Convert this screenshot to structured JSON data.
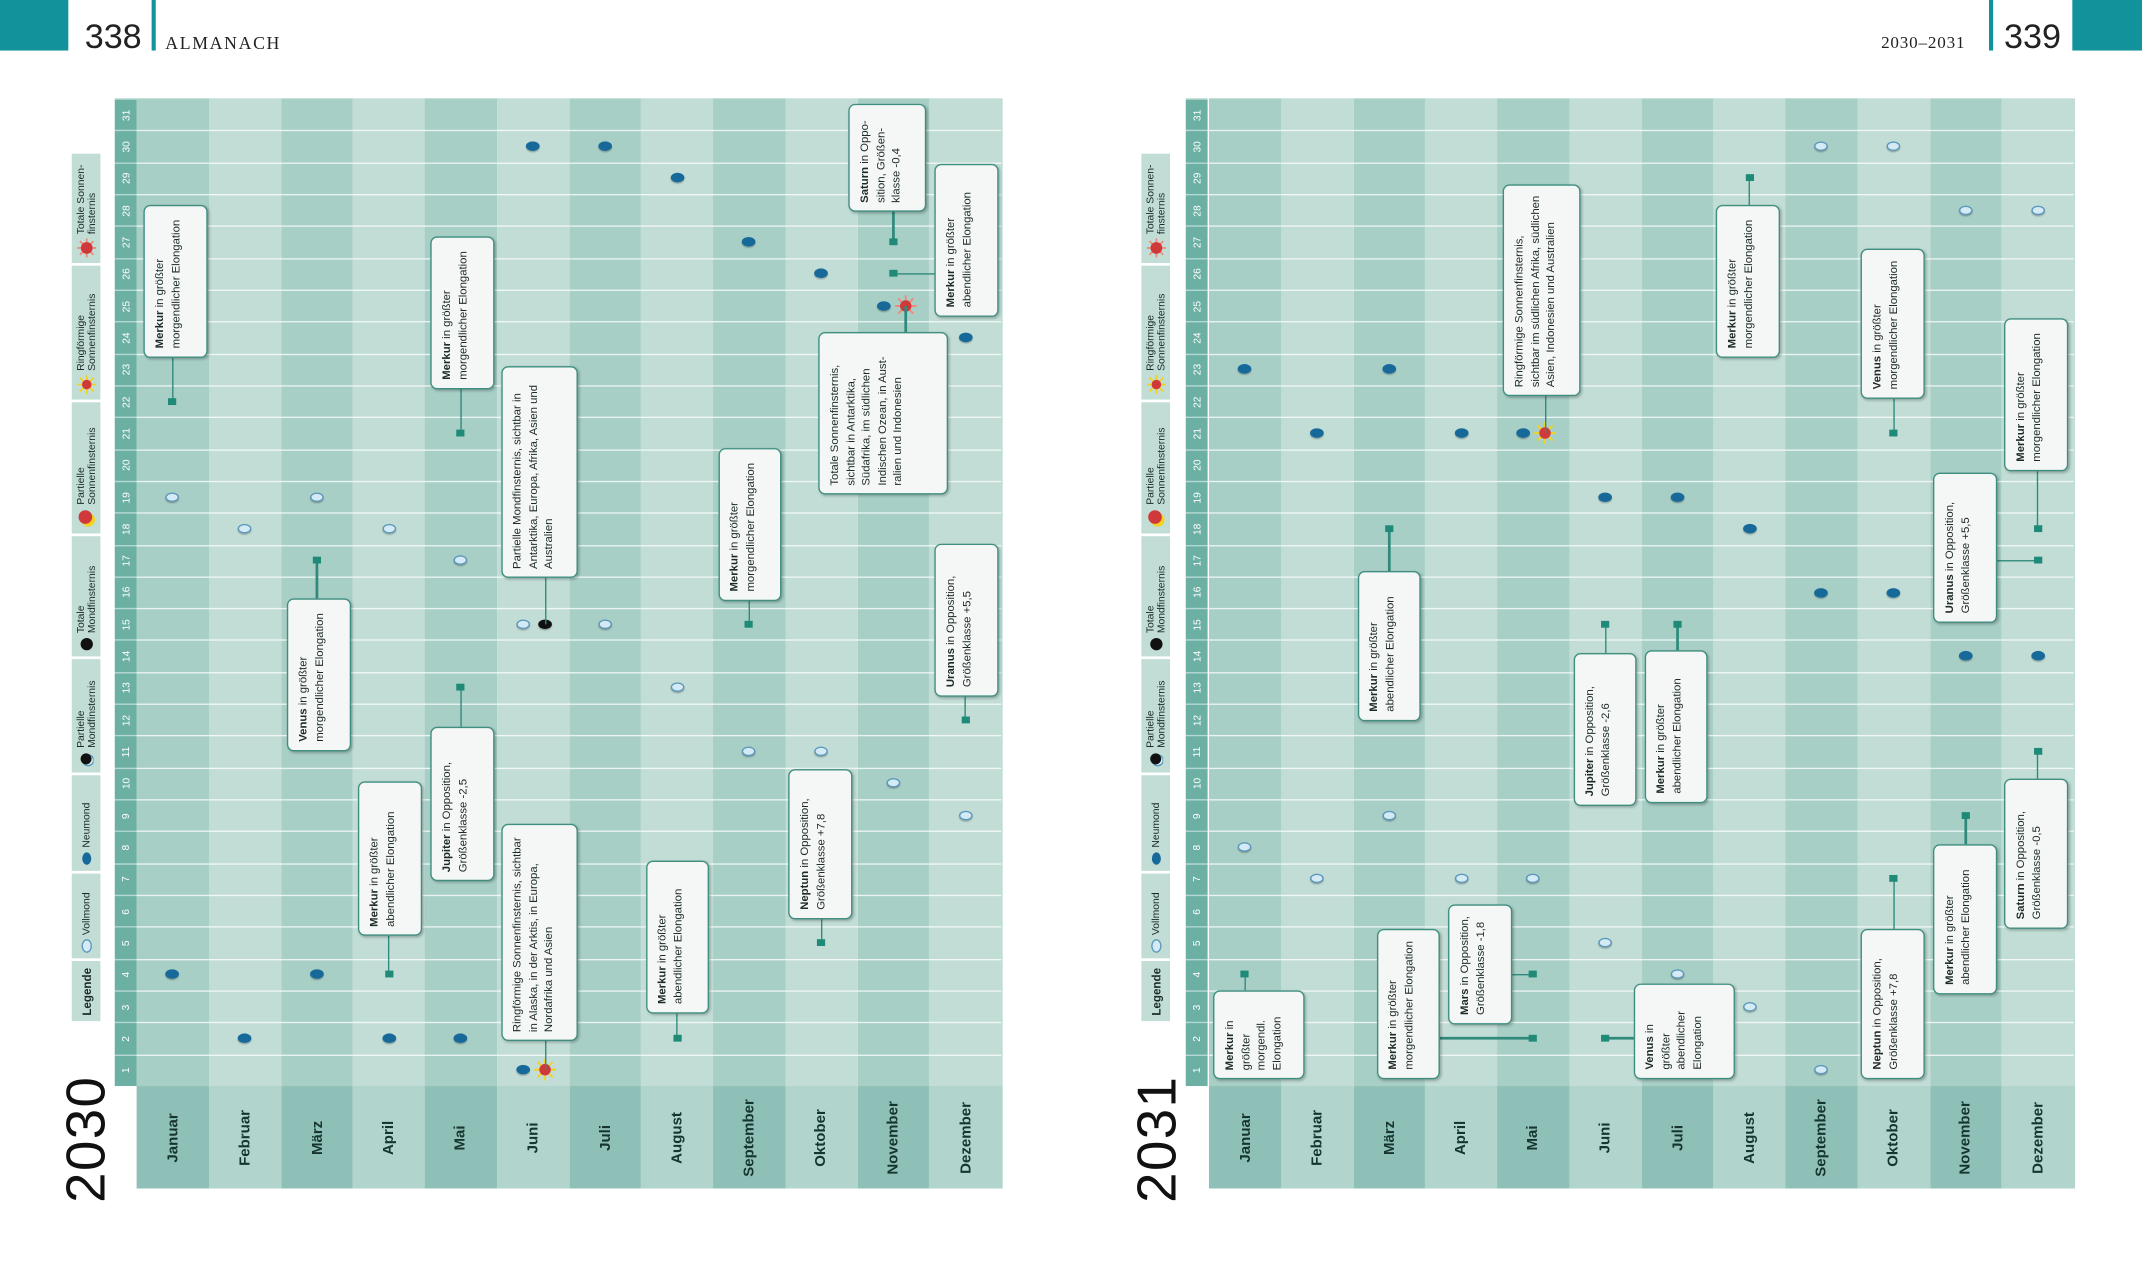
{
  "header": {
    "left": {
      "page": "338",
      "section": "ALMANACH"
    },
    "right": {
      "range": "2030–2031",
      "page": "339"
    }
  },
  "legend": {
    "title": "Legende",
    "items": [
      {
        "label": "Vollmond",
        "icon": "full-moon"
      },
      {
        "label": "Neumond",
        "icon": "new-moon"
      },
      {
        "label": "Partielle Mondfinsternis",
        "icon": "partial-lunar-eclipse"
      },
      {
        "label": "Totale Mondfinsternis",
        "icon": "total-lunar-eclipse"
      },
      {
        "label": "Partielle Sonnenfinsternis",
        "icon": "partial-solar-eclipse"
      },
      {
        "label": "Ringförmige Sonnenfinsternis",
        "icon": "annular-solar-eclipse"
      },
      {
        "label": "Totale Sonnen-finsternis",
        "icon": "total-solar-eclipse"
      }
    ]
  },
  "months": [
    "Januar",
    "Februar",
    "März",
    "April",
    "Mai",
    "Juni",
    "Juli",
    "August",
    "September",
    "Oktober",
    "November",
    "Dezember"
  ],
  "colors": {
    "accent": "#12929a",
    "column_dark": "#a8cfc6",
    "column_light": "#c1ddd6",
    "new_moon": "#17699a",
    "full_moon": "#d4ebf6",
    "callout_border": "#3f8f81"
  },
  "years": [
    {
      "year": "2030",
      "events": [
        {
          "month": 1,
          "day": 4,
          "type": "new-moon"
        },
        {
          "month": 1,
          "day": 19,
          "type": "full-moon"
        },
        {
          "month": 2,
          "day": 2,
          "type": "new-moon"
        },
        {
          "month": 2,
          "day": 18,
          "type": "full-moon"
        },
        {
          "month": 3,
          "day": 4,
          "type": "new-moon"
        },
        {
          "month": 3,
          "day": 19,
          "type": "full-moon"
        },
        {
          "month": 4,
          "day": 2,
          "type": "new-moon"
        },
        {
          "month": 4,
          "day": 18,
          "type": "full-moon"
        },
        {
          "month": 5,
          "day": 2,
          "type": "new-moon"
        },
        {
          "month": 5,
          "day": 17,
          "type": "full-moon"
        },
        {
          "month": 6,
          "day": 1,
          "type": "new-moon"
        },
        {
          "month": 6,
          "day": 1,
          "type": "annular-solar-eclipse"
        },
        {
          "month": 6,
          "day": 15,
          "type": "full-moon"
        },
        {
          "month": 6,
          "day": 15,
          "type": "partial-lunar-eclipse"
        },
        {
          "month": 6,
          "day": 30,
          "type": "new-moon"
        },
        {
          "month": 7,
          "day": 15,
          "type": "full-moon"
        },
        {
          "month": 7,
          "day": 30,
          "type": "new-moon"
        },
        {
          "month": 8,
          "day": 13,
          "type": "full-moon"
        },
        {
          "month": 8,
          "day": 29,
          "type": "new-moon"
        },
        {
          "month": 9,
          "day": 11,
          "type": "full-moon"
        },
        {
          "month": 9,
          "day": 27,
          "type": "new-moon"
        },
        {
          "month": 10,
          "day": 11,
          "type": "full-moon"
        },
        {
          "month": 10,
          "day": 26,
          "type": "new-moon"
        },
        {
          "month": 11,
          "day": 10,
          "type": "full-moon"
        },
        {
          "month": 11,
          "day": 25,
          "type": "new-moon"
        },
        {
          "month": 11,
          "day": 25,
          "type": "total-solar-eclipse"
        },
        {
          "month": 12,
          "day": 9,
          "type": "full-moon"
        },
        {
          "month": 12,
          "day": 24,
          "type": "new-moon"
        }
      ],
      "callouts": [
        {
          "month": 1,
          "day": 22,
          "bold": "Merkur",
          "text": " in größter morgendlicher Elongation"
        },
        {
          "month": 3,
          "day": 17,
          "bold": "Venus",
          "text": " in größter morgendlicher Elongation"
        },
        {
          "month": 4,
          "day": 4,
          "bold": "Merkur",
          "text": " in größter abendlicher Elongation"
        },
        {
          "month": 5,
          "day": 13,
          "bold": "Jupiter",
          "text": " in Opposition, Größenklasse -2,5"
        },
        {
          "month": 5,
          "day": 21,
          "bold": "Merkur",
          "text": " in größter morgendlicher Elongation"
        },
        {
          "month": 6,
          "day": 1,
          "bold": "",
          "text": "Ringförmige Sonnenfinsternis, sichtbar in Alaska, in der Arktis, in Europa, Nordafrika und Asien"
        },
        {
          "month": 6,
          "day": 15,
          "bold": "",
          "text": "Partielle Mondfinsternis, sichtbar in Antarktika, Europa, Afrika, Asien und Australien"
        },
        {
          "month": 8,
          "day": 2,
          "bold": "Merkur",
          "text": " in größter abendlicher Elongation"
        },
        {
          "month": 9,
          "day": 15,
          "bold": "Merkur",
          "text": " in größter morgendlicher Elongation"
        },
        {
          "month": 10,
          "day": 5,
          "bold": "Neptun",
          "text": " in Opposition, Größenklasse +7,8"
        },
        {
          "month": 11,
          "day": 27,
          "bold": "Saturn",
          "text": " in Oppo­sition, Größen­klasse -0,4"
        },
        {
          "month": 11,
          "day": 26,
          "bold": "Merkur",
          "text": " in größter abendlicher Elongation"
        },
        {
          "month": 11,
          "day": 25,
          "bold": "",
          "text": "Totale Sonnenfinsternis, sichtbar in Antarktika, Südafrika, im südlichen Indischen Ozean, in Aust­ralien und Indonesien"
        },
        {
          "month": 12,
          "day": 12,
          "bold": "Uranus",
          "text": " in Opposition, Größenklasse +5,5"
        }
      ]
    },
    {
      "year": "2031",
      "events": [
        {
          "month": 1,
          "day": 8,
          "type": "full-moon"
        },
        {
          "month": 1,
          "day": 23,
          "type": "new-moon"
        },
        {
          "month": 2,
          "day": 7,
          "type": "full-moon"
        },
        {
          "month": 2,
          "day": 21,
          "type": "new-moon"
        },
        {
          "month": 3,
          "day": 9,
          "type": "full-moon"
        },
        {
          "month": 3,
          "day": 23,
          "type": "new-moon"
        },
        {
          "month": 4,
          "day": 7,
          "type": "full-moon"
        },
        {
          "month": 4,
          "day": 21,
          "type": "new-moon"
        },
        {
          "month": 5,
          "day": 7,
          "type": "full-moon"
        },
        {
          "month": 5,
          "day": 21,
          "type": "new-moon"
        },
        {
          "month": 5,
          "day": 21,
          "type": "annular-solar-eclipse"
        },
        {
          "month": 6,
          "day": 5,
          "type": "full-moon"
        },
        {
          "month": 6,
          "day": 19,
          "type": "new-moon"
        },
        {
          "month": 7,
          "day": 4,
          "type": "full-moon"
        },
        {
          "month": 7,
          "day": 19,
          "type": "new-moon"
        },
        {
          "month": 8,
          "day": 3,
          "type": "full-moon"
        },
        {
          "month": 8,
          "day": 18,
          "type": "new-moon"
        },
        {
          "month": 9,
          "day": 1,
          "type": "full-moon"
        },
        {
          "month": 9,
          "day": 16,
          "type": "new-moon"
        },
        {
          "month": 9,
          "day": 30,
          "type": "full-moon"
        },
        {
          "month": 10,
          "day": 16,
          "type": "new-moon"
        },
        {
          "month": 10,
          "day": 30,
          "type": "full-moon"
        },
        {
          "month": 11,
          "day": 14,
          "type": "new-moon"
        },
        {
          "month": 11,
          "day": 28,
          "type": "full-moon"
        },
        {
          "month": 12,
          "day": 14,
          "type": "new-moon"
        },
        {
          "month": 12,
          "day": 28,
          "type": "full-moon"
        }
      ],
      "callouts": [
        {
          "month": 1,
          "day": 4,
          "bold": "Merkur",
          "text": " in größter morgendl. Elongation"
        },
        {
          "month": 3,
          "day": 18,
          "bold": "Merkur",
          "text": " in größter abendlicher Elongation"
        },
        {
          "month": 5,
          "day": 2,
          "bold": "Merkur",
          "text": " in größter morgendlicher Elongation"
        },
        {
          "month": 5,
          "day": 4,
          "bold": "Mars",
          "text": " in Opposition, Größenklasse -1,8"
        },
        {
          "month": 5,
          "day": 21,
          "bold": "",
          "text": "Ringförmige Sonnenfinsternis, sichtbar im südlichen Afrika, südlichen Asien, Indonesien und Australien"
        },
        {
          "month": 6,
          "day": 15,
          "bold": "Jupiter",
          "text": " in Opposition, Größenklasse -2,6"
        },
        {
          "month": 6,
          "day": 2,
          "bold": "Venus",
          "text": " in größter abendlicher Elongation"
        },
        {
          "month": 7,
          "day": 15,
          "bold": "Merkur",
          "text": " in größter abendlicher Elongation"
        },
        {
          "month": 8,
          "day": 29,
          "bold": "Merkur",
          "text": " in größter morgendlicher Elongation"
        },
        {
          "month": 10,
          "day": 21,
          "bold": "Venus",
          "text": " in größter morgendlicher Elongation"
        },
        {
          "month": 10,
          "day": 7,
          "bold": "Neptun",
          "text": " in Opposition, Größenklasse +7,8"
        },
        {
          "month": 12,
          "day": 17,
          "bold": "Uranus",
          "text": " in Opposition, Größenklasse +5,5"
        },
        {
          "month": 11,
          "day": 9,
          "bold": "Merkur",
          "text": " in größter abendlicher Elongation"
        },
        {
          "month": 12,
          "day": 18,
          "bold": "Merkur",
          "text": " in größter morgendlicher Elongation"
        },
        {
          "month": 12,
          "day": 11,
          "bold": "Saturn",
          "text": " in Opposition, Größenklasse -0,5"
        }
      ]
    }
  ]
}
